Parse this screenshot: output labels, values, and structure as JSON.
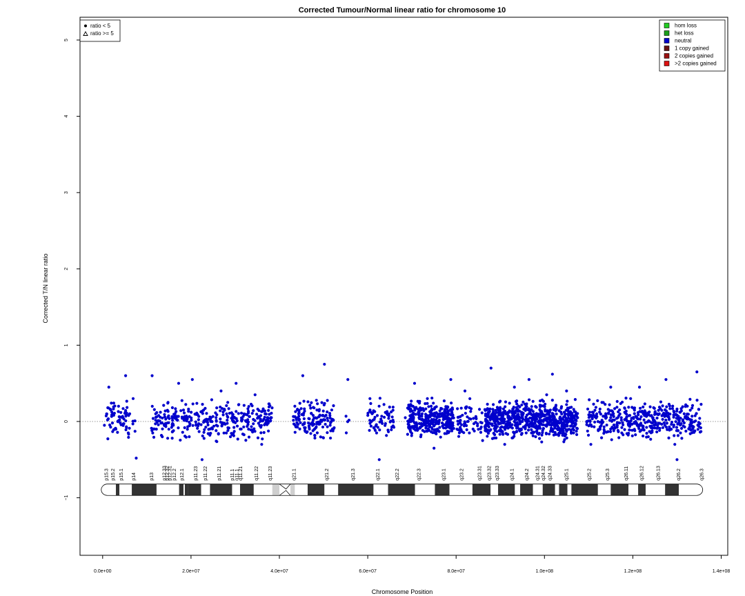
{
  "chart_data": {
    "type": "scatter",
    "title": "Corrected Tumour/Normal linear ratio for chromosome  10",
    "xlabel": "Chromosome Position",
    "ylabel": "Corrected T/N linear ratio",
    "xlim": [
      -5000000,
      140000000
    ],
    "ylim": [
      -1.8,
      5.3
    ],
    "xticks": [
      {
        "value": 0,
        "label": "0.0e+00"
      },
      {
        "value": 20000000,
        "label": "2.0e+07"
      },
      {
        "value": 40000000,
        "label": "4.0e+07"
      },
      {
        "value": 60000000,
        "label": "6.0e+07"
      },
      {
        "value": 80000000,
        "label": "8.0e+07"
      },
      {
        "value": 100000000,
        "label": "1.0e+08"
      },
      {
        "value": 120000000,
        "label": "1.2e+08"
      },
      {
        "value": 140000000,
        "label": "1.4e+08"
      }
    ],
    "yticks": [
      {
        "value": -1,
        "label": "−1"
      },
      {
        "value": 0,
        "label": "0"
      },
      {
        "value": 1,
        "label": "1"
      },
      {
        "value": 2,
        "label": "2"
      },
      {
        "value": 3,
        "label": "3"
      },
      {
        "value": 4,
        "label": "4"
      },
      {
        "value": 5,
        "label": "5"
      }
    ],
    "reference_line": 0,
    "grid": false,
    "series": [
      {
        "name": "neutral",
        "color": "#0000cc",
        "marker": "circle",
        "values": [
          [
            400000.0,
            -0.05
          ],
          [
            900000.0,
            0.1
          ],
          [
            1400000.0,
            0.45
          ],
          [
            2800000.0,
            -0.1
          ],
          [
            3600000.0,
            0.2
          ],
          [
            4600000.0,
            0.05
          ],
          [
            5200000.0,
            0.6
          ],
          [
            5800000.0,
            -0.15
          ],
          [
            6900000.0,
            0.3
          ],
          [
            7600000.0,
            -0.48
          ],
          [
            11200000.0,
            0.6
          ],
          [
            12000000.0,
            0.1
          ],
          [
            13500000.0,
            -0.2
          ],
          [
            14800000.0,
            0.25
          ],
          [
            16000000.0,
            -0.05
          ],
          [
            17200000.0,
            0.5
          ],
          [
            18300000.0,
            0.15
          ],
          [
            19600000.0,
            -0.2
          ],
          [
            20300000.0,
            0.55
          ],
          [
            22500000.0,
            -0.5
          ],
          [
            24500000.0,
            0.05
          ],
          [
            26800000.0,
            0.4
          ],
          [
            28000000.0,
            -0.15
          ],
          [
            30200000.0,
            0.5
          ],
          [
            32000000.0,
            0.1
          ],
          [
            34500000.0,
            0.35
          ],
          [
            36000000.0,
            -0.3
          ],
          [
            38200000.0,
            0.05
          ],
          [
            43500000.0,
            0.2
          ],
          [
            45300000.0,
            0.6
          ],
          [
            46800000.0,
            -0.1
          ],
          [
            48500000.0,
            0.15
          ],
          [
            50200000.0,
            0.75
          ],
          [
            51500000.0,
            -0.05
          ],
          [
            55500000.0,
            0.55
          ],
          [
            60500000.0,
            0.3
          ],
          [
            62000000.0,
            -0.15
          ],
          [
            62600000.0,
            -0.5
          ],
          [
            64800000.0,
            0.1
          ],
          [
            68500000.0,
            0.05
          ],
          [
            70600000.0,
            0.5
          ],
          [
            72000000.0,
            -0.2
          ],
          [
            73500000.0,
            0.3
          ],
          [
            75000000.0,
            -0.35
          ],
          [
            76500000.0,
            0.1
          ],
          [
            78800000.0,
            0.55
          ],
          [
            80200000.0,
            -0.1
          ],
          [
            82000000.0,
            0.4
          ],
          [
            84500000.0,
            0.05
          ],
          [
            86000000.0,
            -0.25
          ],
          [
            87900000.0,
            0.7
          ],
          [
            89500000.0,
            0.15
          ],
          [
            91000000.0,
            -0.3
          ],
          [
            93200000.0,
            0.45
          ],
          [
            95000000.0,
            0.0
          ],
          [
            96500000.0,
            0.55
          ],
          [
            98000000.0,
            -0.2
          ],
          [
            100500000.0,
            0.35
          ],
          [
            101800000.0,
            0.62
          ],
          [
            103500000.0,
            -0.1
          ],
          [
            105000000.0,
            0.4
          ],
          [
            107500000.0,
            0.05
          ],
          [
            110500000.0,
            -0.3
          ],
          [
            113000000.0,
            0.25
          ],
          [
            115000000.0,
            0.45
          ],
          [
            117500000.0,
            -0.15
          ],
          [
            119500000.0,
            0.3
          ],
          [
            121500000.0,
            0.45
          ],
          [
            123500000.0,
            -0.2
          ],
          [
            125500000.0,
            0.1
          ],
          [
            127500000.0,
            0.55
          ],
          [
            129500000.0,
            -0.3
          ],
          [
            130000000.0,
            -0.5
          ],
          [
            132000000.0,
            0.05
          ],
          [
            134500000.0,
            0.65
          ]
        ]
      }
    ],
    "ideogram": {
      "bands": [
        "p15.3",
        "p15.2",
        "p15.1",
        "p14",
        "p13",
        "p12.33",
        "p12.32",
        "p12.31",
        "p12.2",
        "p12.1",
        "p11.23",
        "p11.22",
        "p11.21",
        "p11.1",
        "q11.1",
        "q11.21",
        "q11.22",
        "q11.23",
        "q21.1",
        "q21.2",
        "q21.3",
        "q22.1",
        "q22.2",
        "q22.3",
        "q23.1",
        "q23.2",
        "q23.31",
        "q23.32",
        "q23.33",
        "q24.1",
        "q24.2",
        "q24.31",
        "q24.32",
        "q24.33",
        "q25.1",
        "q25.2",
        "q25.3",
        "q26.11",
        "q26.12",
        "q26.13",
        "q26.2",
        "q26.3"
      ]
    },
    "legend_left": {
      "placement": "top-left",
      "entries": [
        {
          "label": "ratio < 5",
          "marker": "circle"
        },
        {
          "label": "ratio >= 5",
          "marker": "triangle"
        }
      ]
    },
    "legend_right": {
      "placement": "top-right",
      "entries": [
        {
          "label": "hom loss",
          "color": "#22cc22"
        },
        {
          "label": "het loss",
          "color": "#1a9e1a"
        },
        {
          "label": "neutral",
          "color": "#0000cc"
        },
        {
          "label": "1 copy gained",
          "color": "#661111"
        },
        {
          "label": "2 copies gained",
          "color": "#991111"
        },
        {
          "label": ">2 copies gained",
          "color": "#dd1111"
        }
      ]
    }
  }
}
